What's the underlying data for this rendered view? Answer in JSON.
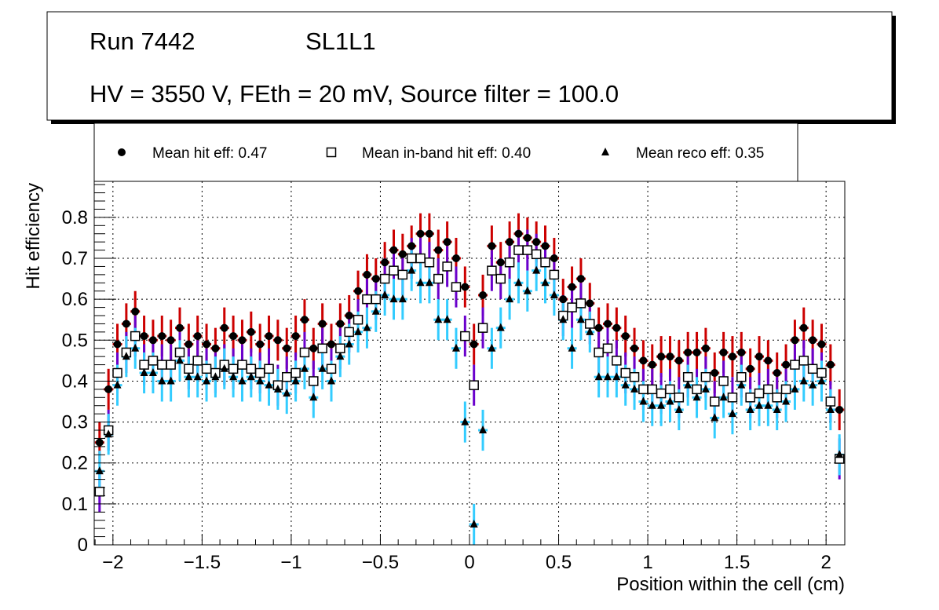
{
  "chart_data": {
    "type": "scatter",
    "title_box": {
      "line1_run": "Run 7442",
      "line1_layer": "SL1L1",
      "line2": "HV = 3550 V, FEth = 20 mV, Source filter = 100.0"
    },
    "xlabel": "Position within the cell (cm)",
    "ylabel": "Hit efficiency",
    "xlim": [
      -2.105,
      2.105
    ],
    "ylim": [
      0,
      0.888
    ],
    "xticks": [
      -2,
      -1.5,
      -1,
      -0.5,
      0,
      0.5,
      1,
      1.5,
      2
    ],
    "xtick_labels": [
      "−2",
      "−1.5",
      "−1",
      "−0.5",
      "0",
      "0.5",
      "1",
      "1.5",
      "2"
    ],
    "yticks": [
      0,
      0.1,
      0.2,
      0.3,
      0.4,
      0.5,
      0.6,
      0.7,
      0.8
    ],
    "ytick_labels": [
      "0",
      "0.1",
      "0.2",
      "0.3",
      "0.4",
      "0.5",
      "0.6",
      "0.7",
      "0.8"
    ],
    "grid": true,
    "legend_position": "top",
    "x_start": -2.075,
    "x_step": 0.05,
    "series": [
      {
        "name": "Mean hit  eff: 0.47",
        "marker": "circle",
        "error_color": "#cc0000",
        "err": 0.05,
        "values": [
          0.25,
          0.38,
          0.49,
          0.54,
          0.57,
          0.51,
          0.5,
          0.51,
          0.5,
          0.53,
          0.49,
          0.51,
          0.49,
          0.48,
          0.53,
          0.51,
          0.5,
          0.52,
          0.49,
          0.51,
          0.5,
          0.48,
          0.51,
          0.55,
          0.48,
          0.54,
          0.49,
          0.54,
          0.56,
          0.62,
          0.66,
          0.65,
          0.69,
          0.72,
          0.71,
          0.73,
          0.76,
          0.76,
          0.72,
          0.74,
          0.7,
          0.63,
          0.49,
          0.61,
          0.73,
          0.69,
          0.74,
          0.76,
          0.75,
          0.74,
          0.73,
          0.7,
          0.6,
          0.63,
          0.65,
          0.59,
          0.53,
          0.54,
          0.53,
          0.51,
          0.48,
          0.45,
          0.44,
          0.46,
          0.46,
          0.45,
          0.47,
          0.47,
          0.48,
          0.42,
          0.47,
          0.46,
          0.47,
          0.43,
          0.46,
          0.45,
          0.42,
          0.44,
          0.5,
          0.53,
          0.5,
          0.49,
          0.44,
          0.33
        ]
      },
      {
        "name": "Mean in-band hit eff: 0.40",
        "marker": "open-square",
        "error_color": "#6a00cc",
        "err": 0.05,
        "values": [
          0.13,
          0.28,
          0.42,
          0.47,
          0.51,
          0.44,
          0.45,
          0.44,
          0.44,
          0.47,
          0.43,
          0.45,
          0.43,
          0.42,
          0.44,
          0.43,
          0.44,
          0.43,
          0.42,
          0.43,
          0.39,
          0.41,
          0.42,
          0.47,
          0.4,
          0.48,
          0.43,
          0.48,
          0.52,
          0.55,
          0.6,
          0.6,
          0.65,
          0.67,
          0.66,
          0.7,
          0.7,
          0.69,
          0.65,
          0.68,
          0.63,
          0.51,
          0.39,
          0.53,
          0.67,
          0.65,
          0.69,
          0.72,
          0.72,
          0.71,
          0.69,
          0.66,
          0.56,
          0.58,
          0.59,
          0.54,
          0.47,
          0.48,
          0.45,
          0.42,
          0.41,
          0.38,
          0.38,
          0.37,
          0.38,
          0.36,
          0.41,
          0.38,
          0.41,
          0.35,
          0.4,
          0.36,
          0.41,
          0.36,
          0.37,
          0.38,
          0.36,
          0.38,
          0.44,
          0.45,
          0.43,
          0.42,
          0.35,
          0.21
        ]
      },
      {
        "name": "Mean reco eff: 0.35",
        "marker": "triangle",
        "error_color": "#33ccff",
        "err": 0.05,
        "values": [
          0.18,
          0.27,
          0.39,
          0.46,
          0.48,
          0.42,
          0.42,
          0.4,
          0.4,
          0.45,
          0.41,
          0.41,
          0.4,
          0.41,
          0.43,
          0.41,
          0.4,
          0.41,
          0.4,
          0.39,
          0.38,
          0.37,
          0.4,
          0.43,
          0.36,
          0.43,
          0.4,
          0.46,
          0.49,
          0.52,
          0.53,
          0.57,
          0.61,
          0.6,
          0.6,
          0.67,
          0.64,
          0.64,
          0.55,
          0.55,
          0.48,
          0.3,
          0.05,
          0.28,
          0.48,
          0.53,
          0.6,
          0.64,
          0.62,
          0.67,
          0.64,
          0.61,
          0.55,
          0.48,
          0.55,
          0.52,
          0.41,
          0.41,
          0.41,
          0.39,
          0.38,
          0.35,
          0.34,
          0.34,
          0.35,
          0.33,
          0.39,
          0.36,
          0.38,
          0.31,
          0.36,
          0.32,
          0.39,
          0.33,
          0.34,
          0.34,
          0.33,
          0.35,
          0.38,
          0.4,
          0.39,
          0.4,
          0.33,
          0.22
        ]
      }
    ]
  }
}
